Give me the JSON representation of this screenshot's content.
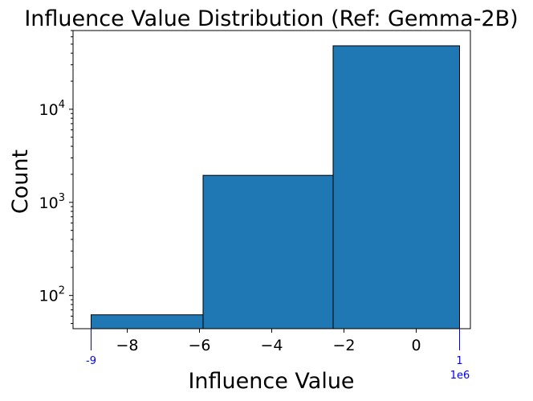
{
  "chart_data": {
    "type": "bar",
    "title": "Influence Value Distribution (Ref: Gemma-2B)",
    "xlabel": "Influence Value",
    "ylabel": "Count",
    "x_scale_note": "1e6",
    "xlim": [
      -9.5,
      1.5
    ],
    "ylim": [
      44,
      70000
    ],
    "yscale": "log",
    "bins": [
      {
        "x0": -9.0,
        "x1": -5.9,
        "count": 62
      },
      {
        "x0": -5.9,
        "x1": -2.3,
        "count": 1950
      },
      {
        "x0": -2.3,
        "x1": 1.2,
        "count": 48000
      }
    ],
    "x_ticks": [
      {
        "value": -8,
        "label": "−8"
      },
      {
        "value": -6,
        "label": "−6"
      },
      {
        "value": -4,
        "label": "−4"
      },
      {
        "value": -2,
        "label": "−2"
      },
      {
        "value": 0,
        "label": "0"
      }
    ],
    "y_major_ticks": [
      {
        "value": 100,
        "base": "10",
        "exp": "2"
      },
      {
        "value": 1000,
        "base": "10",
        "exp": "3"
      },
      {
        "value": 10000,
        "base": "10",
        "exp": "4"
      }
    ],
    "range_markers": [
      {
        "value": -9.0,
        "label": "-9"
      },
      {
        "value": 1.2,
        "label": "1"
      }
    ],
    "colors": {
      "bar_fill": "#1f77b4",
      "bar_edge": "#000000",
      "marker": "#0000ff",
      "text": "#000000"
    }
  }
}
